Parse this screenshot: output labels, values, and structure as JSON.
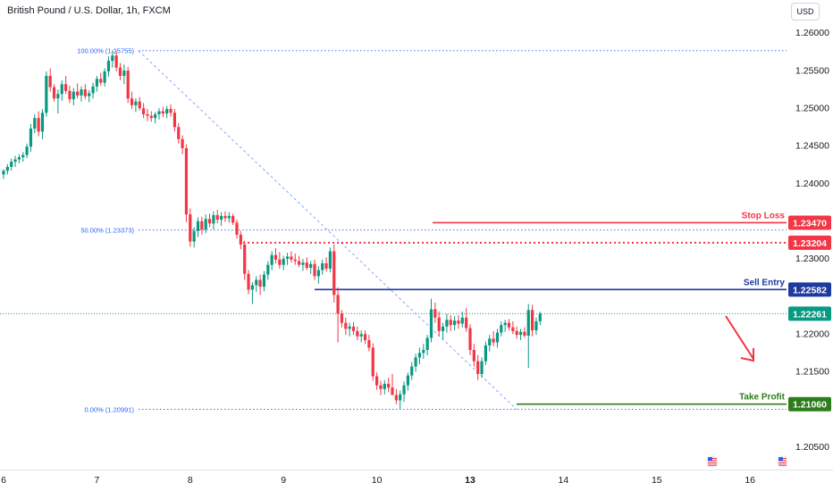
{
  "header": {
    "title": "British Pound / U.S. Dollar, 1h, FXCM",
    "currency": "USD"
  },
  "colors": {
    "up": "#089981",
    "down": "#f23645",
    "fib": "#2962ff",
    "stop": "#f23645",
    "entry": "#1e3a9e",
    "profit": "#2e7d1b",
    "current": "#089981",
    "arrow": "#f23645"
  },
  "chart_data": {
    "type": "candlestick",
    "title": "British Pound / U.S. Dollar, 1h, FXCM",
    "y_ticks": [
      "1.26000",
      "1.25500",
      "1.25000",
      "1.24500",
      "1.24000",
      "1.23000",
      "1.22000",
      "1.21500",
      "1.20500"
    ],
    "y_range": [
      1.2025,
      1.2625
    ],
    "x_ticks": [
      {
        "label": "6",
        "x": 0
      },
      {
        "label": "7",
        "x": 24
      },
      {
        "label": "8",
        "x": 48
      },
      {
        "label": "9",
        "x": 72
      },
      {
        "label": "10",
        "x": 96
      },
      {
        "label": "13",
        "x": 120
      },
      {
        "label": "14",
        "x": 144
      },
      {
        "label": "15",
        "x": 168
      },
      {
        "label": "16",
        "x": 192
      }
    ],
    "fib_levels": [
      {
        "label": "100.00% (1.25755)",
        "value": 1.25755
      },
      {
        "label": "50.00% (1.23373)",
        "value": 1.23373
      },
      {
        "label": "0.00% (1.20991)",
        "value": 1.20991
      }
    ],
    "levels": [
      {
        "name": "Stop Loss",
        "value": 1.2347,
        "price_label": "1.23470",
        "style": "solid",
        "color": "#f23645"
      },
      {
        "name": "",
        "value": 1.23204,
        "price_label": "1.23204",
        "style": "dotted",
        "color": "#f23645"
      },
      {
        "name": "Sell Entry",
        "value": 1.22582,
        "price_label": "1.22582",
        "style": "solid",
        "color": "#1e3a9e"
      },
      {
        "name": "Take Profit",
        "value": 1.2106,
        "price_label": "1.21060",
        "style": "solid",
        "color": "#2e7d1b"
      }
    ],
    "current_price": {
      "value": 1.22261,
      "label": "1.22261"
    },
    "candles": [
      [
        1.2411,
        1.2418,
        1.2405,
        1.2416
      ],
      [
        1.2416,
        1.2425,
        1.2411,
        1.2421
      ],
      [
        1.2421,
        1.2432,
        1.2416,
        1.2428
      ],
      [
        1.2428,
        1.2436,
        1.2421,
        1.2431
      ],
      [
        1.2431,
        1.2438,
        1.2426,
        1.2434
      ],
      [
        1.2434,
        1.2441,
        1.2428,
        1.2437
      ],
      [
        1.2437,
        1.2452,
        1.2433,
        1.2448
      ],
      [
        1.2448,
        1.2478,
        1.2441,
        1.2472
      ],
      [
        1.2472,
        1.2491,
        1.2466,
        1.2486
      ],
      [
        1.2486,
        1.2495,
        1.2462,
        1.2468
      ],
      [
        1.2468,
        1.2498,
        1.2458,
        1.2493
      ],
      [
        1.2493,
        1.2548,
        1.2488,
        1.2542
      ],
      [
        1.2542,
        1.2552,
        1.2521,
        1.2527
      ],
      [
        1.2527,
        1.2531,
        1.2508,
        1.2512
      ],
      [
        1.2512,
        1.2524,
        1.2492,
        1.2518
      ],
      [
        1.2518,
        1.2536,
        1.2509,
        1.2531
      ],
      [
        1.2531,
        1.2542,
        1.2518,
        1.2522
      ],
      [
        1.2522,
        1.2529,
        1.2506,
        1.2511
      ],
      [
        1.2511,
        1.2526,
        1.2503,
        1.2521
      ],
      [
        1.2521,
        1.2532,
        1.2512,
        1.2516
      ],
      [
        1.2516,
        1.2528,
        1.2508,
        1.2524
      ],
      [
        1.2524,
        1.2531,
        1.2511,
        1.2515
      ],
      [
        1.2515,
        1.2523,
        1.2507,
        1.2519
      ],
      [
        1.2519,
        1.2533,
        1.2512,
        1.2528
      ],
      [
        1.2528,
        1.2542,
        1.2521,
        1.2538
      ],
      [
        1.2538,
        1.2546,
        1.2529,
        1.2533
      ],
      [
        1.2533,
        1.2552,
        1.2528,
        1.2548
      ],
      [
        1.2548,
        1.2568,
        1.2541,
        1.2562
      ],
      [
        1.2562,
        1.2576,
        1.2553,
        1.2569
      ],
      [
        1.2569,
        1.2575,
        1.2548,
        1.2553
      ],
      [
        1.2553,
        1.2559,
        1.2536,
        1.2542
      ],
      [
        1.2542,
        1.2557,
        1.2531,
        1.2549
      ],
      [
        1.2549,
        1.2554,
        1.2506,
        1.2512
      ],
      [
        1.2512,
        1.2521,
        1.2498,
        1.2503
      ],
      [
        1.2503,
        1.2512,
        1.2494,
        1.2508
      ],
      [
        1.2508,
        1.2514,
        1.2496,
        1.2499
      ],
      [
        1.2499,
        1.2506,
        1.2486,
        1.2491
      ],
      [
        1.2491,
        1.2498,
        1.2482,
        1.2489
      ],
      [
        1.2489,
        1.2495,
        1.2481,
        1.2486
      ],
      [
        1.2486,
        1.2494,
        1.2479,
        1.2491
      ],
      [
        1.2491,
        1.2499,
        1.2484,
        1.2495
      ],
      [
        1.2495,
        1.2501,
        1.2487,
        1.2492
      ],
      [
        1.2492,
        1.2502,
        1.2486,
        1.2498
      ],
      [
        1.2498,
        1.2504,
        1.2488,
        1.2493
      ],
      [
        1.2493,
        1.2498,
        1.2468,
        1.2474
      ],
      [
        1.2474,
        1.2479,
        1.2452,
        1.2458
      ],
      [
        1.2458,
        1.2463,
        1.2438,
        1.2446
      ],
      [
        1.2446,
        1.2451,
        1.2348,
        1.2358
      ],
      [
        1.2358,
        1.2366,
        1.2315,
        1.2322
      ],
      [
        1.2322,
        1.2341,
        1.2314,
        1.2336
      ],
      [
        1.2336,
        1.2354,
        1.2328,
        1.2349
      ],
      [
        1.2349,
        1.2355,
        1.2331,
        1.2338
      ],
      [
        1.2338,
        1.2358,
        1.2333,
        1.2352
      ],
      [
        1.2352,
        1.2359,
        1.2341,
        1.2346
      ],
      [
        1.2346,
        1.2362,
        1.2338,
        1.2357
      ],
      [
        1.2357,
        1.2364,
        1.2346,
        1.2351
      ],
      [
        1.2351,
        1.2361,
        1.2343,
        1.2356
      ],
      [
        1.2356,
        1.2362,
        1.2348,
        1.2353
      ],
      [
        1.2353,
        1.2361,
        1.2347,
        1.2356
      ],
      [
        1.2356,
        1.2359,
        1.2344,
        1.2347
      ],
      [
        1.2347,
        1.2351,
        1.2326,
        1.2331
      ],
      [
        1.2331,
        1.2336,
        1.2312,
        1.2318
      ],
      [
        1.2318,
        1.2323,
        1.2271,
        1.2279
      ],
      [
        1.2279,
        1.2284,
        1.2252,
        1.2258
      ],
      [
        1.2258,
        1.2268,
        1.2239,
        1.2264
      ],
      [
        1.2264,
        1.2276,
        1.2255,
        1.2271
      ],
      [
        1.2271,
        1.2278,
        1.2251,
        1.2262
      ],
      [
        1.2262,
        1.2283,
        1.2256,
        1.2278
      ],
      [
        1.2278,
        1.2296,
        1.2271,
        1.2291
      ],
      [
        1.2291,
        1.2309,
        1.2284,
        1.2304
      ],
      [
        1.2304,
        1.2313,
        1.2293,
        1.2298
      ],
      [
        1.2298,
        1.2308,
        1.2286,
        1.2291
      ],
      [
        1.2291,
        1.2303,
        1.2284,
        1.2299
      ],
      [
        1.2299,
        1.2307,
        1.2291,
        1.2302
      ],
      [
        1.2302,
        1.2309,
        1.2294,
        1.2298
      ],
      [
        1.2298,
        1.2306,
        1.2291,
        1.2296
      ],
      [
        1.2296,
        1.2303,
        1.2288,
        1.2291
      ],
      [
        1.2291,
        1.2299,
        1.2283,
        1.2294
      ],
      [
        1.2294,
        1.2301,
        1.2284,
        1.2287
      ],
      [
        1.2287,
        1.2296,
        1.2279,
        1.2292
      ],
      [
        1.2292,
        1.2298,
        1.2271,
        1.2276
      ],
      [
        1.2276,
        1.2289,
        1.2266,
        1.2284
      ],
      [
        1.2284,
        1.2298,
        1.2278,
        1.2293
      ],
      [
        1.2293,
        1.2301,
        1.2282,
        1.2286
      ],
      [
        1.2286,
        1.2314,
        1.2281,
        1.2309
      ],
      [
        1.2309,
        1.2318,
        1.2241,
        1.2251
      ],
      [
        1.2251,
        1.2261,
        1.2188,
        1.2226
      ],
      [
        1.2226,
        1.2231,
        1.2208,
        1.2214
      ],
      [
        1.2214,
        1.2221,
        1.2198,
        1.2206
      ],
      [
        1.2206,
        1.2214,
        1.2196,
        1.2209
      ],
      [
        1.2209,
        1.2215,
        1.2198,
        1.2203
      ],
      [
        1.2203,
        1.2209,
        1.2191,
        1.2196
      ],
      [
        1.2196,
        1.2204,
        1.2188,
        1.2199
      ],
      [
        1.2199,
        1.2204,
        1.2186,
        1.2191
      ],
      [
        1.2191,
        1.2198,
        1.2176,
        1.2181
      ],
      [
        1.2181,
        1.2187,
        1.2137,
        1.2143
      ],
      [
        1.2143,
        1.2148,
        1.2125,
        1.2131
      ],
      [
        1.2131,
        1.2137,
        1.2118,
        1.2126
      ],
      [
        1.2126,
        1.2138,
        1.2119,
        1.2133
      ],
      [
        1.2133,
        1.2141,
        1.2122,
        1.2128
      ],
      [
        1.2128,
        1.2146,
        1.2121,
        1.2118
      ],
      [
        1.2118,
        1.2126,
        1.2106,
        1.2111
      ],
      [
        1.2111,
        1.2124,
        1.2099,
        1.2119
      ],
      [
        1.2119,
        1.2136,
        1.2109,
        1.2131
      ],
      [
        1.2131,
        1.2148,
        1.2124,
        1.2144
      ],
      [
        1.2144,
        1.2162,
        1.2138,
        1.2156
      ],
      [
        1.2156,
        1.2173,
        1.2149,
        1.2168
      ],
      [
        1.2168,
        1.2181,
        1.2159,
        1.2174
      ],
      [
        1.2174,
        1.2186,
        1.2166,
        1.2178
      ],
      [
        1.2178,
        1.2198,
        1.2171,
        1.2194
      ],
      [
        1.2194,
        1.2246,
        1.2188,
        1.2232
      ],
      [
        1.2232,
        1.2241,
        1.2214,
        1.2221
      ],
      [
        1.2221,
        1.2229,
        1.2196,
        1.2203
      ],
      [
        1.2203,
        1.2214,
        1.2192,
        1.2209
      ],
      [
        1.2209,
        1.2226,
        1.2201,
        1.2218
      ],
      [
        1.2218,
        1.2224,
        1.2203,
        1.2211
      ],
      [
        1.2211,
        1.2223,
        1.2204,
        1.2217
      ],
      [
        1.2217,
        1.2224,
        1.2206,
        1.2213
      ],
      [
        1.2213,
        1.2229,
        1.2208,
        1.2221
      ],
      [
        1.2221,
        1.2234,
        1.2202,
        1.2207
      ],
      [
        1.2207,
        1.2212,
        1.2171,
        1.2178
      ],
      [
        1.2178,
        1.2186,
        1.2156,
        1.2163
      ],
      [
        1.2163,
        1.2171,
        1.2138,
        1.2146
      ],
      [
        1.2146,
        1.2168,
        1.2141,
        1.2163
      ],
      [
        1.2163,
        1.2189,
        1.2158,
        1.2184
      ],
      [
        1.2184,
        1.2198,
        1.2176,
        1.2193
      ],
      [
        1.2193,
        1.2203,
        1.2183,
        1.2188
      ],
      [
        1.2188,
        1.2206,
        1.2181,
        1.2201
      ],
      [
        1.2201,
        1.2216,
        1.2196,
        1.2211
      ],
      [
        1.2211,
        1.2218,
        1.2202,
        1.2214
      ],
      [
        1.2214,
        1.2219,
        1.2204,
        1.2208
      ],
      [
        1.2208,
        1.2216,
        1.2199,
        1.2203
      ],
      [
        1.2203,
        1.2209,
        1.2193,
        1.2198
      ],
      [
        1.2198,
        1.2206,
        1.2191,
        1.2202
      ],
      [
        1.2202,
        1.2208,
        1.2194,
        1.2197
      ],
      [
        1.2197,
        1.2239,
        1.2154,
        1.2231
      ],
      [
        1.2231,
        1.2238,
        1.2196,
        1.2204
      ],
      [
        1.2204,
        1.2221,
        1.2198,
        1.2216
      ],
      [
        1.2216,
        1.2229,
        1.2211,
        1.2226
      ]
    ]
  }
}
